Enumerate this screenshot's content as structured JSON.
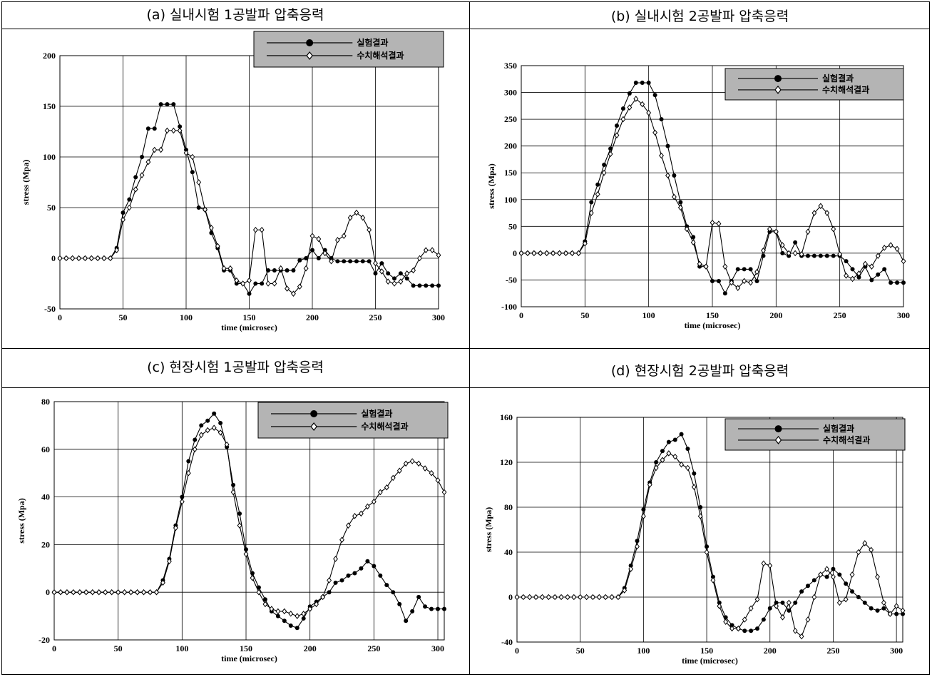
{
  "colors": {
    "line": "#000000",
    "grid": "#000000",
    "legend_bg": "#b4b4b4"
  },
  "panels": [
    {
      "title": "(a) 실내시험 1공발파 압축응력",
      "legend": [
        "실험결과",
        "수치해석결과"
      ]
    },
    {
      "title": "(b) 실내시험 2공발파 압축응력",
      "legend": [
        "실험결과",
        "수치해석결과"
      ]
    },
    {
      "title": "(c) 현장시험 1공발파 압축응력",
      "legend": [
        "실험결과",
        "수치해석결과"
      ]
    },
    {
      "title": "(d) 현장시험 2공발파 압축응력",
      "legend": [
        "실험결과",
        "수치해석결과"
      ]
    }
  ],
  "chart_data": [
    {
      "type": "line",
      "xlabel": "time (microsec)",
      "ylabel": "stress (Mpa)",
      "xlim": [
        0,
        300
      ],
      "ylim": [
        -50,
        200
      ],
      "xticks": [
        0,
        50,
        100,
        150,
        200,
        250,
        300
      ],
      "yticks": [
        -50,
        0,
        50,
        100,
        150,
        200
      ],
      "grid": true,
      "legend_position": "top-right",
      "series": [
        {
          "name": "실험결과",
          "marker": "circle",
          "x": [
            0,
            5,
            10,
            15,
            20,
            25,
            30,
            35,
            40,
            45,
            50,
            55,
            60,
            65,
            70,
            75,
            80,
            85,
            90,
            95,
            100,
            105,
            110,
            115,
            120,
            125,
            130,
            135,
            140,
            145,
            150,
            155,
            160,
            165,
            170,
            175,
            180,
            185,
            190,
            195,
            200,
            205,
            210,
            215,
            220,
            225,
            230,
            235,
            240,
            245,
            250,
            255,
            260,
            265,
            270,
            275,
            280,
            285,
            290,
            295,
            300
          ],
          "y": [
            0,
            0,
            0,
            0,
            0,
            0,
            0,
            0,
            0,
            10,
            45,
            58,
            80,
            100,
            128,
            128,
            152,
            152,
            152,
            130,
            107,
            85,
            50,
            48,
            25,
            10,
            -12,
            -12,
            -25,
            -25,
            -35,
            -25,
            -25,
            -12,
            -12,
            -12,
            -12,
            -12,
            -2,
            0,
            8,
            0,
            8,
            0,
            -3,
            -3,
            -3,
            -3,
            -3,
            -3,
            -15,
            -5,
            -15,
            -20,
            -15,
            -20,
            -27,
            -27,
            -27,
            -27,
            -27
          ]
        },
        {
          "name": "수치해석결과",
          "marker": "diamond",
          "x": [
            0,
            5,
            10,
            15,
            20,
            25,
            30,
            35,
            40,
            45,
            50,
            55,
            60,
            65,
            70,
            75,
            80,
            85,
            90,
            95,
            100,
            105,
            110,
            115,
            120,
            125,
            130,
            135,
            140,
            145,
            150,
            155,
            160,
            165,
            170,
            175,
            180,
            185,
            190,
            195,
            200,
            205,
            210,
            215,
            220,
            225,
            230,
            235,
            240,
            245,
            250,
            255,
            260,
            265,
            270,
            275,
            280,
            285,
            290,
            295,
            300
          ],
          "y": [
            0,
            0,
            0,
            0,
            0,
            0,
            0,
            0,
            0,
            8,
            38,
            50,
            68,
            82,
            95,
            107,
            107,
            126,
            126,
            126,
            104,
            100,
            75,
            48,
            30,
            12,
            -10,
            -10,
            -22,
            -25,
            -22,
            28,
            28,
            -25,
            -25,
            -10,
            -30,
            -35,
            -28,
            -10,
            22,
            19,
            5,
            -3,
            18,
            22,
            40,
            45,
            40,
            28,
            -5,
            -13,
            -23,
            -25,
            -23,
            -15,
            -12,
            0,
            8,
            8,
            3
          ]
        }
      ]
    },
    {
      "type": "line",
      "xlabel": "time (microsec)",
      "ylabel": "stress (Mpa)",
      "xlim": [
        0,
        300
      ],
      "ylim": [
        -100,
        350
      ],
      "xticks": [
        0,
        50,
        100,
        150,
        200,
        250,
        300
      ],
      "yticks": [
        -100,
        -50,
        0,
        50,
        100,
        150,
        200,
        250,
        300,
        350
      ],
      "grid": true,
      "legend_position": "top-right",
      "series": [
        {
          "name": "실험결과",
          "marker": "circle",
          "x": [
            0,
            5,
            10,
            15,
            20,
            25,
            30,
            35,
            40,
            45,
            50,
            55,
            60,
            65,
            70,
            75,
            80,
            85,
            90,
            95,
            100,
            105,
            110,
            115,
            120,
            125,
            130,
            135,
            140,
            145,
            150,
            155,
            160,
            165,
            170,
            175,
            180,
            185,
            190,
            195,
            200,
            205,
            210,
            215,
            220,
            225,
            230,
            235,
            240,
            245,
            250,
            255,
            260,
            265,
            270,
            275,
            280,
            285,
            290,
            295,
            300
          ],
          "y": [
            0,
            0,
            0,
            0,
            0,
            0,
            0,
            0,
            0,
            0,
            22,
            95,
            128,
            165,
            195,
            238,
            270,
            298,
            318,
            318,
            318,
            295,
            250,
            200,
            145,
            95,
            50,
            30,
            -25,
            -25,
            -52,
            -52,
            -75,
            -52,
            -30,
            -30,
            -30,
            -52,
            -5,
            40,
            40,
            0,
            -5,
            20,
            -5,
            -5,
            -5,
            -5,
            -5,
            -5,
            -5,
            -15,
            -30,
            -45,
            -25,
            -50,
            -40,
            -30,
            -55,
            -55,
            -55
          ]
        },
        {
          "name": "수치해석결과",
          "marker": "diamond",
          "x": [
            0,
            5,
            10,
            15,
            20,
            25,
            30,
            35,
            40,
            45,
            50,
            55,
            60,
            65,
            70,
            75,
            80,
            85,
            90,
            95,
            100,
            105,
            110,
            115,
            120,
            125,
            130,
            135,
            140,
            145,
            150,
            155,
            160,
            165,
            170,
            175,
            180,
            185,
            190,
            195,
            200,
            205,
            210,
            215,
            220,
            225,
            230,
            235,
            240,
            245,
            250,
            255,
            260,
            265,
            270,
            275,
            280,
            285,
            290,
            295,
            300
          ],
          "y": [
            0,
            0,
            0,
            0,
            0,
            0,
            0,
            0,
            0,
            0,
            18,
            75,
            110,
            150,
            185,
            220,
            250,
            272,
            288,
            278,
            262,
            225,
            182,
            145,
            105,
            85,
            45,
            20,
            -20,
            -25,
            57,
            55,
            -25,
            -55,
            -65,
            -52,
            -55,
            -35,
            5,
            45,
            40,
            15,
            0,
            0,
            -2,
            40,
            75,
            88,
            75,
            45,
            -2,
            -42,
            -48,
            -38,
            -20,
            -25,
            -5,
            10,
            15,
            8,
            -15
          ]
        }
      ]
    },
    {
      "type": "line",
      "xlabel": "time (microsec)",
      "ylabel": "stress (Mpa)",
      "xlim": [
        0,
        305
      ],
      "ylim": [
        -20,
        80
      ],
      "xticks": [
        0,
        50,
        100,
        150,
        200,
        250,
        300
      ],
      "yticks": [
        -20,
        0,
        20,
        40,
        60,
        80
      ],
      "grid": true,
      "legend_position": "top-right",
      "series": [
        {
          "name": "실험결과",
          "marker": "circle",
          "x": [
            0,
            5,
            10,
            15,
            20,
            25,
            30,
            35,
            40,
            45,
            50,
            55,
            60,
            65,
            70,
            75,
            80,
            85,
            90,
            95,
            100,
            105,
            110,
            115,
            120,
            125,
            130,
            135,
            140,
            145,
            150,
            155,
            160,
            165,
            170,
            175,
            180,
            185,
            190,
            195,
            200,
            205,
            210,
            215,
            220,
            225,
            230,
            235,
            240,
            245,
            250,
            255,
            260,
            265,
            270,
            275,
            280,
            285,
            290,
            295,
            300,
            305
          ],
          "y": [
            0,
            0,
            0,
            0,
            0,
            0,
            0,
            0,
            0,
            0,
            0,
            0,
            0,
            0,
            0,
            0,
            0,
            5,
            14,
            28,
            40,
            55,
            64,
            70,
            72,
            75,
            71,
            61,
            45,
            33,
            18,
            8,
            2,
            -3,
            -8,
            -10,
            -12,
            -14,
            -15,
            -11,
            -6,
            -4,
            -2,
            0,
            4,
            5,
            7,
            8,
            10,
            13,
            11,
            7,
            3,
            0,
            -5,
            -12,
            -8,
            -2,
            -6,
            -7,
            -7,
            -7
          ]
        },
        {
          "name": "수치해석결과",
          "marker": "diamond",
          "x": [
            0,
            5,
            10,
            15,
            20,
            25,
            30,
            35,
            40,
            45,
            50,
            55,
            60,
            65,
            70,
            75,
            80,
            85,
            90,
            95,
            100,
            105,
            110,
            115,
            120,
            125,
            130,
            135,
            140,
            145,
            150,
            155,
            160,
            165,
            170,
            175,
            180,
            185,
            190,
            195,
            200,
            205,
            210,
            215,
            220,
            225,
            230,
            235,
            240,
            245,
            250,
            255,
            260,
            265,
            270,
            275,
            280,
            285,
            290,
            295,
            300,
            305
          ],
          "y": [
            0,
            0,
            0,
            0,
            0,
            0,
            0,
            0,
            0,
            0,
            0,
            0,
            0,
            0,
            0,
            0,
            0,
            4,
            13,
            27,
            38,
            50,
            60,
            66,
            68,
            69,
            67,
            62,
            42,
            28,
            16,
            6,
            0,
            -5,
            -7,
            -8,
            -8,
            -9,
            -10,
            -9,
            -7,
            -5,
            -2,
            5,
            14,
            22,
            28,
            32,
            33,
            36,
            38,
            42,
            44,
            48,
            51,
            54,
            55,
            54,
            52,
            50,
            47,
            42
          ]
        }
      ]
    },
    {
      "type": "line",
      "xlabel": "time (microsec)",
      "ylabel": "stress (Mpa)",
      "xlim": [
        0,
        305
      ],
      "ylim": [
        -40,
        160
      ],
      "xticks": [
        0,
        50,
        100,
        150,
        200,
        250,
        300
      ],
      "yticks": [
        -40,
        0,
        40,
        80,
        120,
        160
      ],
      "grid": true,
      "legend_position": "top-right",
      "series": [
        {
          "name": "실험결과",
          "marker": "circle",
          "x": [
            0,
            5,
            10,
            15,
            20,
            25,
            30,
            35,
            40,
            45,
            50,
            55,
            60,
            65,
            70,
            75,
            80,
            85,
            90,
            95,
            100,
            105,
            110,
            115,
            120,
            125,
            130,
            135,
            140,
            145,
            150,
            155,
            160,
            165,
            170,
            175,
            180,
            185,
            190,
            195,
            200,
            205,
            210,
            215,
            220,
            225,
            230,
            235,
            240,
            245,
            250,
            255,
            260,
            265,
            270,
            275,
            280,
            285,
            290,
            295,
            300,
            305
          ],
          "y": [
            0,
            0,
            0,
            0,
            0,
            0,
            0,
            0,
            0,
            0,
            0,
            0,
            0,
            0,
            0,
            0,
            0,
            8,
            28,
            50,
            78,
            102,
            120,
            130,
            138,
            140,
            145,
            132,
            110,
            80,
            45,
            18,
            -5,
            -18,
            -25,
            -28,
            -30,
            -30,
            -28,
            -20,
            -10,
            -5,
            -5,
            -12,
            -5,
            5,
            10,
            15,
            20,
            18,
            25,
            20,
            12,
            5,
            0,
            -5,
            -10,
            -12,
            -10,
            -15,
            -15,
            -15
          ]
        },
        {
          "name": "수치해석결과",
          "marker": "diamond",
          "x": [
            0,
            5,
            10,
            15,
            20,
            25,
            30,
            35,
            40,
            45,
            50,
            55,
            60,
            65,
            70,
            75,
            80,
            85,
            90,
            95,
            100,
            105,
            110,
            115,
            120,
            125,
            130,
            135,
            140,
            145,
            150,
            155,
            160,
            165,
            170,
            175,
            180,
            185,
            190,
            195,
            200,
            205,
            210,
            215,
            220,
            225,
            230,
            235,
            240,
            245,
            250,
            255,
            260,
            265,
            270,
            275,
            280,
            285,
            290,
            295,
            300,
            305
          ],
          "y": [
            0,
            0,
            0,
            0,
            0,
            0,
            0,
            0,
            0,
            0,
            0,
            0,
            0,
            0,
            0,
            0,
            0,
            6,
            25,
            45,
            72,
            100,
            115,
            122,
            128,
            125,
            118,
            115,
            98,
            72,
            40,
            15,
            -8,
            -22,
            -28,
            -28,
            -20,
            -10,
            -2,
            30,
            28,
            -8,
            -18,
            -5,
            -30,
            -35,
            -20,
            0,
            20,
            25,
            18,
            -5,
            -2,
            20,
            40,
            48,
            42,
            18,
            -5,
            -15,
            -8,
            -12
          ]
        }
      ]
    }
  ]
}
